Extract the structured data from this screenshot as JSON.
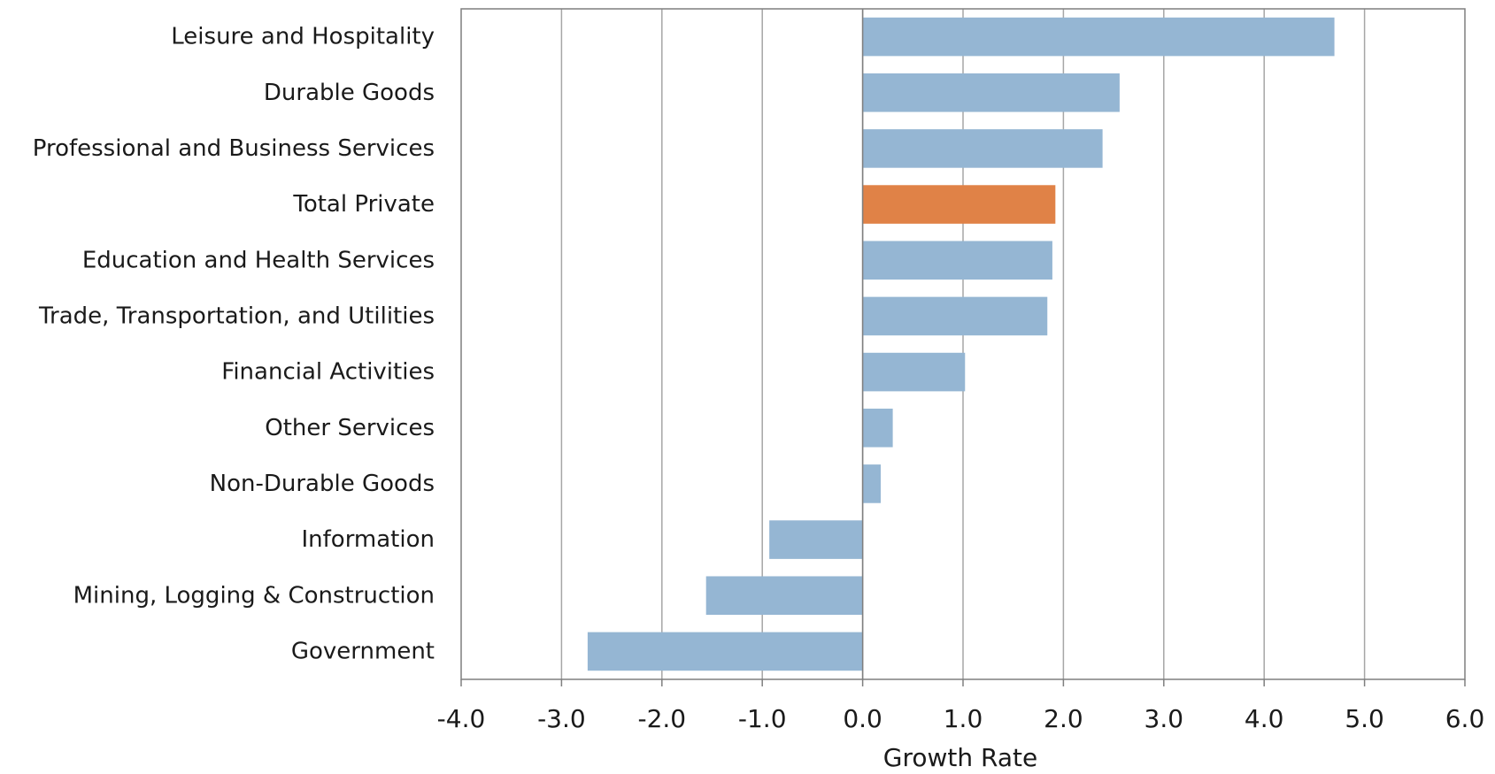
{
  "chart_data": {
    "type": "bar",
    "orientation": "horizontal",
    "title": "",
    "xlabel": "Growth Rate",
    "ylabel": "",
    "xlim": [
      -4.0,
      6.0
    ],
    "xticks": [
      "-4.0",
      "-3.0",
      "-2.0",
      "-1.0",
      "0.0",
      "1.0",
      "2.0",
      "3.0",
      "4.0",
      "5.0",
      "6.0"
    ],
    "grid": "vertical",
    "legend": "none",
    "categories": [
      "Leisure and Hospitality",
      "Durable Goods",
      "Professional and Business Services",
      "Total Private",
      "Education and Health Services",
      "Trade, Transportation, and Utilities",
      "Financial Activities",
      "Other Services",
      "Non-Durable Goods",
      "Information",
      "Mining, Logging & Construction",
      "Government"
    ],
    "values": [
      4.7,
      2.56,
      2.39,
      1.92,
      1.89,
      1.84,
      1.02,
      0.3,
      0.18,
      -0.93,
      -1.56,
      -2.74
    ],
    "colors": {
      "default_bar": "#95b6d3",
      "highlight_bar": "#e08247",
      "grid": "#a6a6a6",
      "axis": "#7f7f7f"
    },
    "highlight_category": "Total Private"
  }
}
